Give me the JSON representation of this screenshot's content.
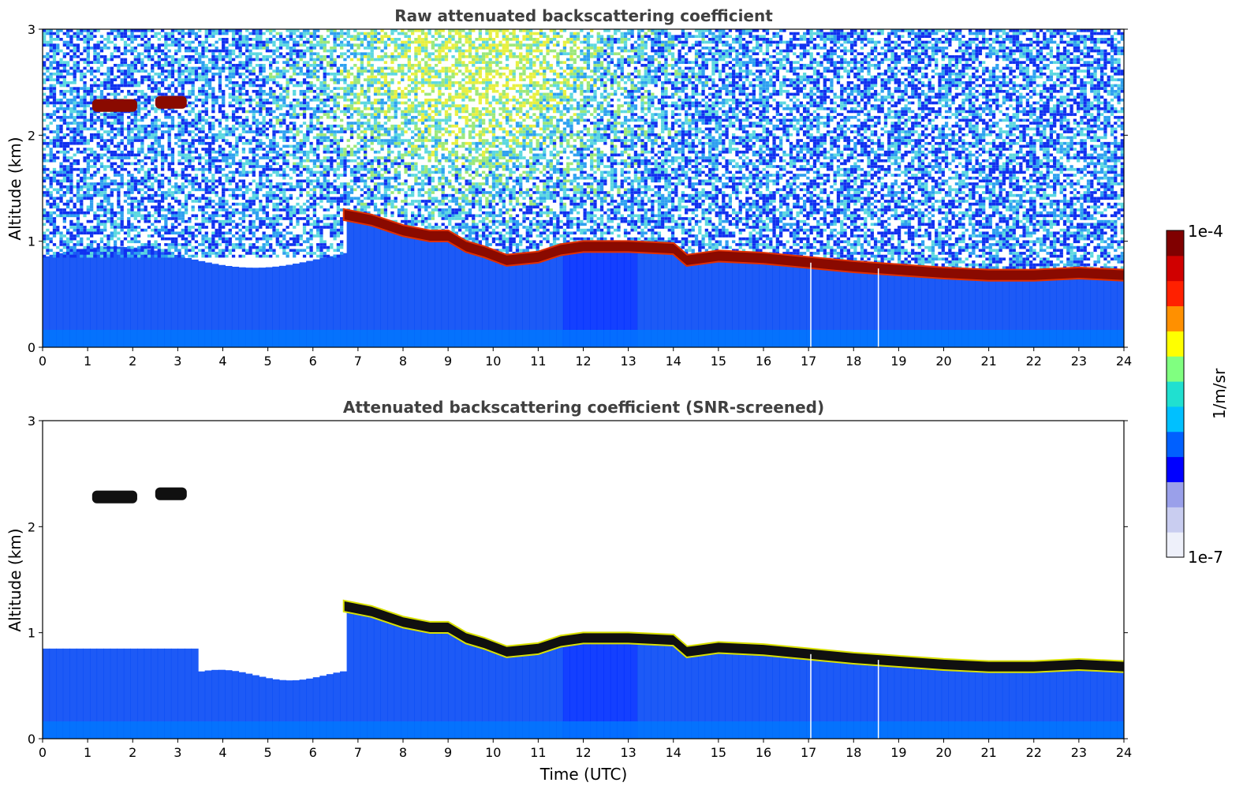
{
  "chart_data": [
    {
      "type": "heatmap",
      "title": "Raw attenuated backscattering coefficient",
      "xlabel": "",
      "ylabel": "Altitude (km)",
      "xlim": [
        0,
        24
      ],
      "ylim": [
        0,
        3
      ],
      "x_ticks": [
        0,
        1,
        2,
        3,
        4,
        5,
        6,
        7,
        8,
        9,
        10,
        11,
        12,
        13,
        14,
        15,
        16,
        17,
        18,
        19,
        20,
        21,
        22,
        23,
        24
      ],
      "y_ticks": [
        0,
        1,
        2,
        3
      ],
      "noise_field": true,
      "cloud_layer": {
        "time_utc": [
          6.7,
          7.3,
          8.0,
          8.6,
          9.0,
          9.4,
          9.8,
          10.3,
          11.0,
          11.5,
          12.0,
          13.0,
          14.0,
          14.3,
          15.0,
          16.0,
          17.0,
          18.0,
          19.0,
          20.0,
          21.0,
          22.0,
          23.0,
          24.0
        ],
        "altitude_km": [
          1.25,
          1.2,
          1.1,
          1.05,
          1.05,
          0.95,
          0.9,
          0.82,
          0.85,
          0.92,
          0.95,
          0.95,
          0.93,
          0.82,
          0.86,
          0.84,
          0.8,
          0.76,
          0.73,
          0.7,
          0.68,
          0.68,
          0.7,
          0.68
        ]
      },
      "upper_cloud": [
        {
          "time_utc": [
            1.1,
            2.1
          ],
          "altitude_km": 2.28
        },
        {
          "time_utc": [
            2.5,
            3.2
          ],
          "altitude_km": 2.31
        }
      ],
      "data_gaps_time_utc": [
        17.05,
        18.55
      ]
    },
    {
      "type": "heatmap",
      "title": "Attenuated backscattering coefficient (SNR-screened)",
      "xlabel": "Time (UTC)",
      "ylabel": "Altitude (km)",
      "xlim": [
        0,
        24
      ],
      "ylim": [
        0,
        3
      ],
      "x_ticks": [
        0,
        1,
        2,
        3,
        4,
        5,
        6,
        7,
        8,
        9,
        10,
        11,
        12,
        13,
        14,
        15,
        16,
        17,
        18,
        19,
        20,
        21,
        22,
        23,
        24
      ],
      "y_ticks": [
        0,
        1,
        2,
        3
      ],
      "noise_field": false,
      "cloud_layer": {
        "time_utc": [
          6.7,
          7.3,
          8.0,
          8.6,
          9.0,
          9.4,
          9.8,
          10.3,
          11.0,
          11.5,
          12.0,
          13.0,
          14.0,
          14.3,
          15.0,
          16.0,
          17.0,
          18.0,
          19.0,
          20.0,
          21.0,
          22.0,
          23.0,
          24.0
        ],
        "altitude_km": [
          1.25,
          1.2,
          1.1,
          1.05,
          1.05,
          0.95,
          0.9,
          0.82,
          0.85,
          0.92,
          0.95,
          0.95,
          0.93,
          0.82,
          0.86,
          0.84,
          0.8,
          0.76,
          0.73,
          0.7,
          0.68,
          0.68,
          0.7,
          0.68
        ]
      },
      "upper_cloud": [
        {
          "time_utc": [
            1.1,
            2.1
          ],
          "altitude_km": 2.28
        },
        {
          "time_utc": [
            2.5,
            3.2
          ],
          "altitude_km": 2.31
        }
      ],
      "data_gaps_time_utc": [
        17.05,
        18.55
      ]
    }
  ],
  "colorbar": {
    "label": "1/m/sr",
    "min_label": "1e-7",
    "max_label": "1e-4",
    "colors": [
      "#eef0fa",
      "#c9cdf0",
      "#9aa0ea",
      "#0000ff",
      "#0060ff",
      "#00c0ff",
      "#20e0d0",
      "#80ff80",
      "#ffff00",
      "#ff9000",
      "#ff2000",
      "#d00000",
      "#800000"
    ]
  }
}
